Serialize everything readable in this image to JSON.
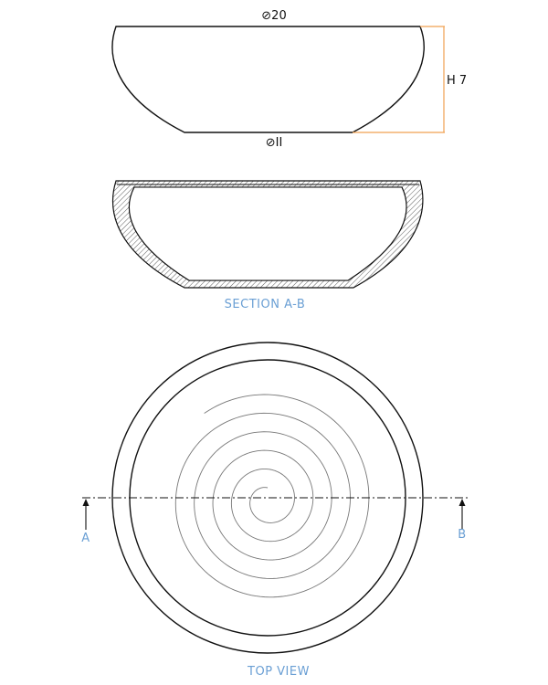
{
  "drawing": {
    "dimensions": {
      "top_diameter": "⊘20",
      "bottom_diameter": "⊘II",
      "height": "H 7"
    },
    "labels": {
      "section_title": "SECTION A-B",
      "top_view_title": "TOP VIEW",
      "cut_start": "A",
      "cut_end": "B"
    },
    "colors": {
      "line": "#111111",
      "dimension_accent": "#f0a050",
      "caption": "#6a9fd4",
      "spiral": "#777777",
      "hatch": "#333333"
    }
  }
}
